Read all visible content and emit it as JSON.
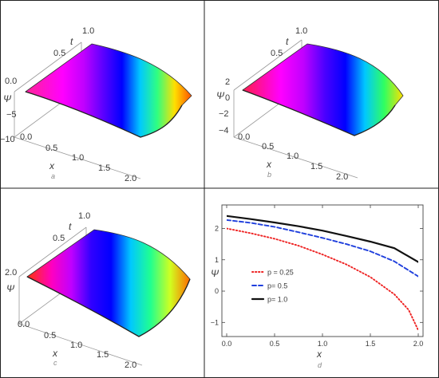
{
  "chart_data": [
    {
      "panel": "a",
      "type": "surface3d",
      "axes": {
        "x": {
          "label": "x",
          "ticks": [
            "0.0",
            "0.5",
            "1.0",
            "1.5",
            "2.0"
          ]
        },
        "t": {
          "label": "t",
          "ticks": [
            "0.5",
            "1.0"
          ]
        },
        "psi": {
          "label": "Ψ",
          "ticks": [
            "0.0",
            "−5",
            "−10"
          ]
        }
      },
      "color_bands": [
        "#ff1fa8",
        "#ff00ff",
        "#c000ff",
        "#5a00ff",
        "#0000ff",
        "#00c8ff",
        "#30ff80",
        "#ffe000",
        "#ff5000"
      ]
    },
    {
      "panel": "b",
      "type": "surface3d",
      "axes": {
        "x": {
          "label": "x",
          "ticks": [
            "0.0",
            "0.5",
            "1.0",
            "1.5",
            "2.0"
          ]
        },
        "t": {
          "label": "t",
          "ticks": [
            "0.5",
            "1.0"
          ]
        },
        "psi": {
          "label": "Ψ",
          "ticks": [
            "2",
            "0",
            "−2",
            "−4"
          ]
        }
      },
      "color_bands": [
        "#ff1a60",
        "#ff00ff",
        "#c000ff",
        "#4a00ff",
        "#0000ff",
        "#00c8ff",
        "#30ff60",
        "#ffe000"
      ]
    },
    {
      "panel": "c",
      "type": "surface3d",
      "axes": {
        "x": {
          "label": "x",
          "ticks": [
            "0.0",
            "0.5",
            "1.0",
            "1.5",
            "2.0"
          ]
        },
        "t": {
          "label": "t",
          "ticks": [
            "0.5",
            "1.0"
          ]
        },
        "psi": {
          "label": "Ψ",
          "ticks": [
            "2.0"
          ]
        }
      },
      "color_bands": [
        "#ff2a2a",
        "#ff00c0",
        "#c000ff",
        "#3000ff",
        "#0000ff",
        "#00c8ff",
        "#20ff90",
        "#d0ff20",
        "#ff6a00"
      ]
    },
    {
      "panel": "d",
      "type": "line",
      "xlabel": "x",
      "ylabel": "Ψ",
      "xlim": [
        -0.05,
        2.05
      ],
      "ylim": [
        -1.45,
        2.75
      ],
      "xticks": [
        0.0,
        0.5,
        1.0,
        1.5,
        2.0
      ],
      "yticks": [
        -1,
        0,
        1,
        2
      ],
      "series": [
        {
          "name": "p = 0.25",
          "color": "#ee2222",
          "style": "dotted",
          "x": [
            0,
            0.25,
            0.5,
            0.75,
            1.0,
            1.25,
            1.5,
            1.75,
            1.9,
            2.0
          ],
          "y": [
            2.0,
            1.85,
            1.67,
            1.45,
            1.17,
            0.85,
            0.45,
            -0.1,
            -0.6,
            -1.25
          ]
        },
        {
          "name": "p= 0.5",
          "color": "#1f3fdd",
          "style": "dashed",
          "x": [
            0,
            0.25,
            0.5,
            0.75,
            1.0,
            1.25,
            1.5,
            1.75,
            2.0
          ],
          "y": [
            2.27,
            2.18,
            2.05,
            1.88,
            1.7,
            1.5,
            1.27,
            0.95,
            0.47
          ]
        },
        {
          "name": "p= 1.0",
          "color": "#111111",
          "style": "solid",
          "x": [
            0,
            0.25,
            0.5,
            0.75,
            1.0,
            1.25,
            1.5,
            1.75,
            2.0
          ],
          "y": [
            2.4,
            2.3,
            2.19,
            2.07,
            1.93,
            1.76,
            1.58,
            1.37,
            0.93
          ]
        }
      ]
    }
  ],
  "labels": {
    "a": "a",
    "b": "b",
    "c": "c",
    "d": "d"
  }
}
